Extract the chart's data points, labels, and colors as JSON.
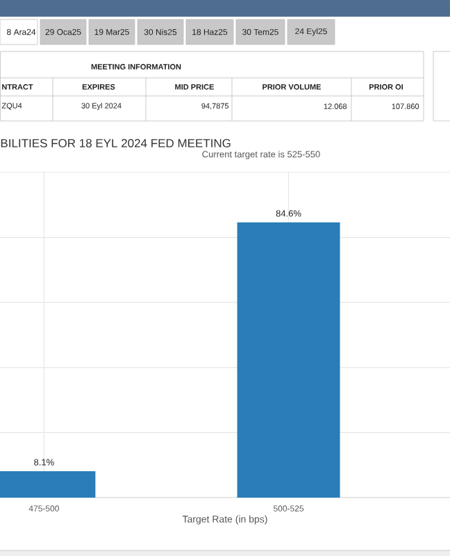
{
  "chart_data": [
    {
      "type": "other",
      "annotations": [
        "8 Ara24",
        "29 Oca25",
        "19 Mar25",
        "30 Nis25",
        "18 Haz25",
        "30 Tem25",
        "24 Eyl25",
        "MEETING INFORMATION",
        "NTRACT",
        "EXPIRES",
        "MID PRICE",
        "PRIOR VOLUME",
        "PRIOR OI",
        "ZQU4",
        "30 Eyl 2024",
        "94,7875",
        "12.068",
        "107.860"
      ]
    },
    {
      "type": "bar",
      "title": "BILITIES FOR 18 EYL 2024 FED MEETING",
      "subtitle": "Current target rate is 525-550",
      "xlabel": "Target Rate (in bps)",
      "categories": [
        "475-500",
        "500-525"
      ],
      "values": [
        8.1,
        84.6
      ],
      "value_labels": [
        "8.1%",
        "84.6%"
      ],
      "color": "#2a7db8",
      "ylim": [
        0,
        100
      ],
      "yticks": [
        {
          "value": 0,
          "label": null
        },
        {
          "value": 20,
          "label": null
        },
        {
          "value": 40,
          "label": null
        },
        {
          "value": 60,
          "label": null
        },
        {
          "value": 80,
          "label": null
        },
        {
          "value": 100,
          "label": null
        }
      ],
      "grid": true
    }
  ]
}
